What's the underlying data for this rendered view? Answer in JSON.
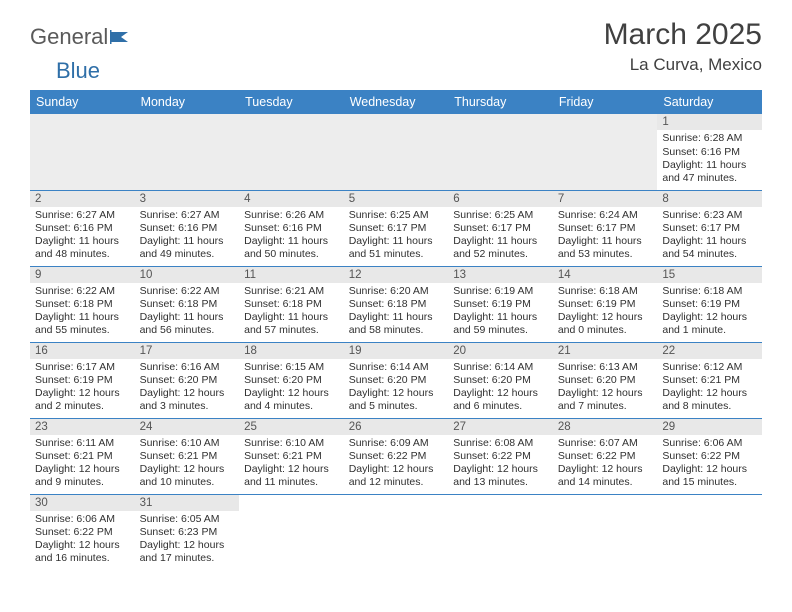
{
  "logo": {
    "general": "General",
    "blue": "Blue"
  },
  "title": "March 2025",
  "subtitle": "La Curva, Mexico",
  "colors": {
    "header_bg": "#3b82c4",
    "header_text": "#ffffff",
    "border": "#3b82c4",
    "blank_bg": "#ededed",
    "daynum_bar_bg": "#e8e8e8",
    "text": "#303030",
    "title_color": "#404040"
  },
  "weekdays": [
    "Sunday",
    "Monday",
    "Tuesday",
    "Wednesday",
    "Thursday",
    "Friday",
    "Saturday"
  ],
  "weeks": [
    [
      null,
      null,
      null,
      null,
      null,
      null,
      {
        "n": "1",
        "sr": "Sunrise: 6:28 AM",
        "ss": "Sunset: 6:16 PM",
        "dl": "Daylight: 11 hours and 47 minutes."
      }
    ],
    [
      {
        "n": "2",
        "sr": "Sunrise: 6:27 AM",
        "ss": "Sunset: 6:16 PM",
        "dl": "Daylight: 11 hours and 48 minutes."
      },
      {
        "n": "3",
        "sr": "Sunrise: 6:27 AM",
        "ss": "Sunset: 6:16 PM",
        "dl": "Daylight: 11 hours and 49 minutes."
      },
      {
        "n": "4",
        "sr": "Sunrise: 6:26 AM",
        "ss": "Sunset: 6:16 PM",
        "dl": "Daylight: 11 hours and 50 minutes."
      },
      {
        "n": "5",
        "sr": "Sunrise: 6:25 AM",
        "ss": "Sunset: 6:17 PM",
        "dl": "Daylight: 11 hours and 51 minutes."
      },
      {
        "n": "6",
        "sr": "Sunrise: 6:25 AM",
        "ss": "Sunset: 6:17 PM",
        "dl": "Daylight: 11 hours and 52 minutes."
      },
      {
        "n": "7",
        "sr": "Sunrise: 6:24 AM",
        "ss": "Sunset: 6:17 PM",
        "dl": "Daylight: 11 hours and 53 minutes."
      },
      {
        "n": "8",
        "sr": "Sunrise: 6:23 AM",
        "ss": "Sunset: 6:17 PM",
        "dl": "Daylight: 11 hours and 54 minutes."
      }
    ],
    [
      {
        "n": "9",
        "sr": "Sunrise: 6:22 AM",
        "ss": "Sunset: 6:18 PM",
        "dl": "Daylight: 11 hours and 55 minutes."
      },
      {
        "n": "10",
        "sr": "Sunrise: 6:22 AM",
        "ss": "Sunset: 6:18 PM",
        "dl": "Daylight: 11 hours and 56 minutes."
      },
      {
        "n": "11",
        "sr": "Sunrise: 6:21 AM",
        "ss": "Sunset: 6:18 PM",
        "dl": "Daylight: 11 hours and 57 minutes."
      },
      {
        "n": "12",
        "sr": "Sunrise: 6:20 AM",
        "ss": "Sunset: 6:18 PM",
        "dl": "Daylight: 11 hours and 58 minutes."
      },
      {
        "n": "13",
        "sr": "Sunrise: 6:19 AM",
        "ss": "Sunset: 6:19 PM",
        "dl": "Daylight: 11 hours and 59 minutes."
      },
      {
        "n": "14",
        "sr": "Sunrise: 6:18 AM",
        "ss": "Sunset: 6:19 PM",
        "dl": "Daylight: 12 hours and 0 minutes."
      },
      {
        "n": "15",
        "sr": "Sunrise: 6:18 AM",
        "ss": "Sunset: 6:19 PM",
        "dl": "Daylight: 12 hours and 1 minute."
      }
    ],
    [
      {
        "n": "16",
        "sr": "Sunrise: 6:17 AM",
        "ss": "Sunset: 6:19 PM",
        "dl": "Daylight: 12 hours and 2 minutes."
      },
      {
        "n": "17",
        "sr": "Sunrise: 6:16 AM",
        "ss": "Sunset: 6:20 PM",
        "dl": "Daylight: 12 hours and 3 minutes."
      },
      {
        "n": "18",
        "sr": "Sunrise: 6:15 AM",
        "ss": "Sunset: 6:20 PM",
        "dl": "Daylight: 12 hours and 4 minutes."
      },
      {
        "n": "19",
        "sr": "Sunrise: 6:14 AM",
        "ss": "Sunset: 6:20 PM",
        "dl": "Daylight: 12 hours and 5 minutes."
      },
      {
        "n": "20",
        "sr": "Sunrise: 6:14 AM",
        "ss": "Sunset: 6:20 PM",
        "dl": "Daylight: 12 hours and 6 minutes."
      },
      {
        "n": "21",
        "sr": "Sunrise: 6:13 AM",
        "ss": "Sunset: 6:20 PM",
        "dl": "Daylight: 12 hours and 7 minutes."
      },
      {
        "n": "22",
        "sr": "Sunrise: 6:12 AM",
        "ss": "Sunset: 6:21 PM",
        "dl": "Daylight: 12 hours and 8 minutes."
      }
    ],
    [
      {
        "n": "23",
        "sr": "Sunrise: 6:11 AM",
        "ss": "Sunset: 6:21 PM",
        "dl": "Daylight: 12 hours and 9 minutes."
      },
      {
        "n": "24",
        "sr": "Sunrise: 6:10 AM",
        "ss": "Sunset: 6:21 PM",
        "dl": "Daylight: 12 hours and 10 minutes."
      },
      {
        "n": "25",
        "sr": "Sunrise: 6:10 AM",
        "ss": "Sunset: 6:21 PM",
        "dl": "Daylight: 12 hours and 11 minutes."
      },
      {
        "n": "26",
        "sr": "Sunrise: 6:09 AM",
        "ss": "Sunset: 6:22 PM",
        "dl": "Daylight: 12 hours and 12 minutes."
      },
      {
        "n": "27",
        "sr": "Sunrise: 6:08 AM",
        "ss": "Sunset: 6:22 PM",
        "dl": "Daylight: 12 hours and 13 minutes."
      },
      {
        "n": "28",
        "sr": "Sunrise: 6:07 AM",
        "ss": "Sunset: 6:22 PM",
        "dl": "Daylight: 12 hours and 14 minutes."
      },
      {
        "n": "29",
        "sr": "Sunrise: 6:06 AM",
        "ss": "Sunset: 6:22 PM",
        "dl": "Daylight: 12 hours and 15 minutes."
      }
    ],
    [
      {
        "n": "30",
        "sr": "Sunrise: 6:06 AM",
        "ss": "Sunset: 6:22 PM",
        "dl": "Daylight: 12 hours and 16 minutes."
      },
      {
        "n": "31",
        "sr": "Sunrise: 6:05 AM",
        "ss": "Sunset: 6:23 PM",
        "dl": "Daylight: 12 hours and 17 minutes."
      },
      null,
      null,
      null,
      null,
      null
    ]
  ]
}
